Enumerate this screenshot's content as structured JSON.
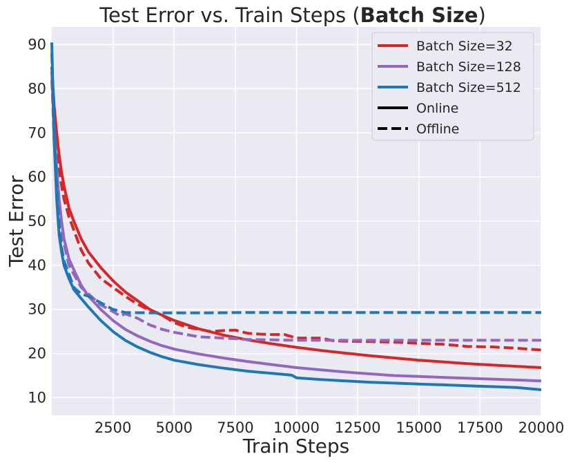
{
  "chart_data": {
    "type": "line",
    "title": "Test Error vs. Train Steps (",
    "title_bold": "Batch Size",
    "title_end": ")",
    "xlabel": "Train Steps",
    "ylabel": "Test Error",
    "xlim": [
      0,
      20000
    ],
    "ylim": [
      6,
      94
    ],
    "xticks": [
      2500,
      5000,
      7500,
      10000,
      12500,
      15000,
      17500,
      20000
    ],
    "xtick_labels": [
      "2500",
      "5000",
      "7500",
      "10000",
      "12500",
      "15000",
      "17500",
      "20000"
    ],
    "yticks": [
      10,
      20,
      30,
      40,
      50,
      60,
      70,
      80,
      90
    ],
    "ytick_labels": [
      "10",
      "20",
      "30",
      "40",
      "50",
      "60",
      "70",
      "80",
      "90"
    ],
    "grid": true,
    "background": "#eaeaf2",
    "legend_position": "top-right",
    "legend": [
      {
        "label": "Batch Size=32",
        "color": "#d62728",
        "dash": false
      },
      {
        "label": "Batch Size=128",
        "color": "#9467bd",
        "dash": false
      },
      {
        "label": "Batch Size=512",
        "color": "#1f77b4",
        "dash": false
      },
      {
        "label": "Online",
        "color": "#000000",
        "dash": false
      },
      {
        "label": "Offline",
        "color": "#000000",
        "dash": true
      }
    ],
    "series": [
      {
        "name": "Batch Size=32",
        "mode": "Online",
        "color": "#d62728",
        "dash": false,
        "points": [
          [
            0,
            85
          ],
          [
            100,
            76
          ],
          [
            200,
            70
          ],
          [
            300,
            65
          ],
          [
            400,
            61
          ],
          [
            500,
            58
          ],
          [
            700,
            53
          ],
          [
            900,
            50
          ],
          [
            1200,
            46
          ],
          [
            1500,
            43
          ],
          [
            2000,
            39.5
          ],
          [
            2500,
            36.5
          ],
          [
            3000,
            34
          ],
          [
            3500,
            32
          ],
          [
            4000,
            30
          ],
          [
            4500,
            28.7
          ],
          [
            5000,
            27.5
          ],
          [
            6000,
            25.6
          ],
          [
            7000,
            24.2
          ],
          [
            8000,
            23.1
          ],
          [
            9000,
            22.2
          ],
          [
            10000,
            21.4
          ],
          [
            11000,
            20.7
          ],
          [
            12000,
            20.1
          ],
          [
            13000,
            19.5
          ],
          [
            14000,
            19
          ],
          [
            15000,
            18.5
          ],
          [
            16000,
            18.1
          ],
          [
            17000,
            17.7
          ],
          [
            18000,
            17.4
          ],
          [
            19000,
            17.1
          ],
          [
            20000,
            16.8
          ]
        ]
      },
      {
        "name": "Batch Size=32",
        "mode": "Offline",
        "color": "#d62728",
        "dash": true,
        "points": [
          [
            0,
            84
          ],
          [
            100,
            74
          ],
          [
            200,
            68
          ],
          [
            300,
            62
          ],
          [
            400,
            58
          ],
          [
            500,
            55
          ],
          [
            700,
            51
          ],
          [
            900,
            48
          ],
          [
            1200,
            43.5
          ],
          [
            1500,
            40.5
          ],
          [
            2000,
            37
          ],
          [
            2500,
            35
          ],
          [
            3000,
            33
          ],
          [
            3500,
            31.2
          ],
          [
            4000,
            29.8
          ],
          [
            4500,
            28.7
          ],
          [
            5000,
            27
          ],
          [
            5500,
            26
          ],
          [
            6000,
            25.5
          ],
          [
            6500,
            25
          ],
          [
            7000,
            25.2
          ],
          [
            7500,
            25.3
          ],
          [
            8000,
            24.6
          ],
          [
            8500,
            24.4
          ],
          [
            9000,
            24.3
          ],
          [
            9500,
            24.3
          ],
          [
            10000,
            23.5
          ],
          [
            10500,
            23.5
          ],
          [
            11000,
            23.5
          ],
          [
            11500,
            22.9
          ],
          [
            12000,
            22.8
          ],
          [
            13000,
            22.7
          ],
          [
            14000,
            22.6
          ],
          [
            15000,
            22.3
          ],
          [
            16000,
            22.1
          ],
          [
            17000,
            21.6
          ],
          [
            18000,
            21.5
          ],
          [
            19000,
            21.2
          ],
          [
            20000,
            20.8
          ]
        ]
      },
      {
        "name": "Batch Size=128",
        "mode": "Online",
        "color": "#9467bd",
        "dash": false,
        "points": [
          [
            0,
            84
          ],
          [
            100,
            70
          ],
          [
            200,
            62
          ],
          [
            300,
            55
          ],
          [
            400,
            50
          ],
          [
            500,
            46
          ],
          [
            700,
            41.5
          ],
          [
            900,
            39
          ],
          [
            1200,
            35.5
          ],
          [
            1500,
            33
          ],
          [
            2000,
            30
          ],
          [
            2500,
            27.5
          ],
          [
            3000,
            25.5
          ],
          [
            3500,
            24
          ],
          [
            4000,
            22.8
          ],
          [
            4500,
            21.8
          ],
          [
            5000,
            21
          ],
          [
            6000,
            19.9
          ],
          [
            7000,
            19
          ],
          [
            8000,
            18.2
          ],
          [
            9000,
            17.5
          ],
          [
            10000,
            16.8
          ],
          [
            11000,
            16.3
          ],
          [
            12000,
            15.8
          ],
          [
            13000,
            15.4
          ],
          [
            14000,
            15
          ],
          [
            15000,
            14.8
          ],
          [
            16000,
            14.6
          ],
          [
            17000,
            14.4
          ],
          [
            18000,
            14.2
          ],
          [
            19000,
            14
          ],
          [
            20000,
            13.8
          ]
        ]
      },
      {
        "name": "Batch Size=128",
        "mode": "Offline",
        "color": "#9467bd",
        "dash": true,
        "points": [
          [
            0,
            82
          ],
          [
            100,
            68
          ],
          [
            200,
            60
          ],
          [
            300,
            53
          ],
          [
            400,
            48
          ],
          [
            500,
            45
          ],
          [
            700,
            40
          ],
          [
            900,
            38
          ],
          [
            1200,
            35
          ],
          [
            1500,
            33.5
          ],
          [
            2000,
            31
          ],
          [
            2500,
            29.5
          ],
          [
            2800,
            28.5
          ],
          [
            3000,
            29
          ],
          [
            3500,
            28
          ],
          [
            4000,
            26.5
          ],
          [
            4500,
            25.5
          ],
          [
            5000,
            24.8
          ],
          [
            5500,
            24.3
          ],
          [
            6000,
            23.8
          ],
          [
            7000,
            23.5
          ],
          [
            8000,
            23.2
          ],
          [
            9000,
            23.1
          ],
          [
            10000,
            23
          ],
          [
            12000,
            23
          ],
          [
            14000,
            23
          ],
          [
            16000,
            23
          ],
          [
            18000,
            23
          ],
          [
            20000,
            23
          ]
        ]
      },
      {
        "name": "Batch Size=512",
        "mode": "Online",
        "color": "#1f77b4",
        "dash": false,
        "points": [
          [
            0,
            90.5
          ],
          [
            100,
            68
          ],
          [
            200,
            55
          ],
          [
            300,
            47
          ],
          [
            400,
            43
          ],
          [
            500,
            40
          ],
          [
            700,
            37
          ],
          [
            900,
            34.5
          ],
          [
            1200,
            32.5
          ],
          [
            1500,
            30.5
          ],
          [
            2000,
            27.5
          ],
          [
            2500,
            25
          ],
          [
            3000,
            23
          ],
          [
            3500,
            21.5
          ],
          [
            4000,
            20.3
          ],
          [
            4500,
            19.3
          ],
          [
            5000,
            18.5
          ],
          [
            6000,
            17.5
          ],
          [
            7000,
            16.7
          ],
          [
            8000,
            16
          ],
          [
            9000,
            15.5
          ],
          [
            9800,
            15.1
          ],
          [
            10000,
            14.5
          ],
          [
            11000,
            14.1
          ],
          [
            12000,
            13.8
          ],
          [
            13000,
            13.5
          ],
          [
            14000,
            13.3
          ],
          [
            15000,
            13.1
          ],
          [
            16000,
            12.9
          ],
          [
            17000,
            12.7
          ],
          [
            18000,
            12.5
          ],
          [
            19000,
            12.3
          ],
          [
            20000,
            11.8
          ]
        ]
      },
      {
        "name": "Batch Size=512",
        "mode": "Offline",
        "color": "#1f77b4",
        "dash": true,
        "points": [
          [
            0,
            88
          ],
          [
            100,
            70
          ],
          [
            200,
            58
          ],
          [
            300,
            49
          ],
          [
            400,
            44
          ],
          [
            500,
            41
          ],
          [
            700,
            38
          ],
          [
            900,
            35
          ],
          [
            1200,
            33.5
          ],
          [
            1500,
            33
          ],
          [
            2000,
            31.5
          ],
          [
            2500,
            30
          ],
          [
            3000,
            29.3
          ],
          [
            4000,
            29.2
          ],
          [
            6000,
            29.2
          ],
          [
            8000,
            29.3
          ],
          [
            10000,
            29.3
          ],
          [
            12000,
            29.3
          ],
          [
            14000,
            29.3
          ],
          [
            16000,
            29.3
          ],
          [
            18000,
            29.3
          ],
          [
            20000,
            29.3
          ]
        ]
      }
    ]
  }
}
